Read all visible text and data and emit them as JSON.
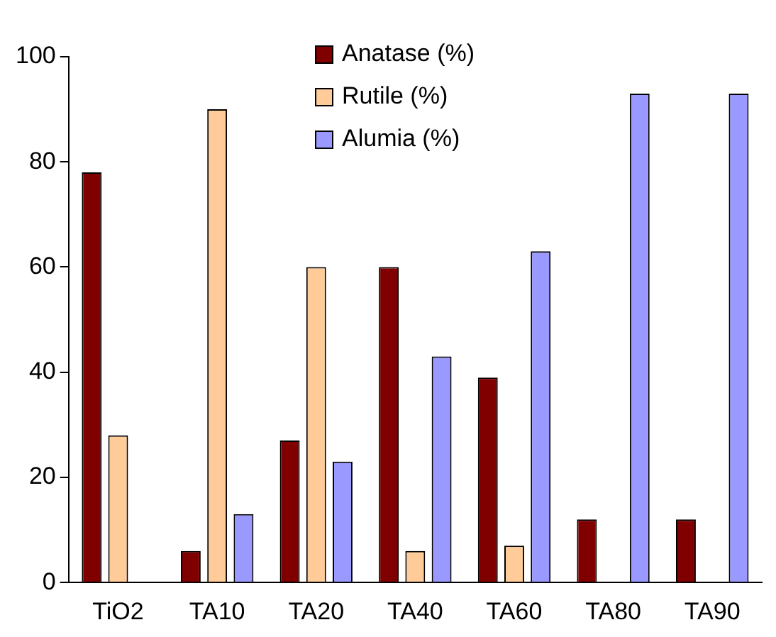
{
  "chart_data": {
    "type": "bar",
    "categories": [
      "TiO2",
      "TA10",
      "TA20",
      "TA40",
      "TA60",
      "TA80",
      "TA90"
    ],
    "series": [
      {
        "name": "Anatase (%)",
        "color": "#800000",
        "values": [
          78,
          6,
          27,
          60,
          39,
          12,
          12
        ]
      },
      {
        "name": "Rutile (%)",
        "color": "#ffcc99",
        "values": [
          28,
          90,
          60,
          6,
          7,
          0,
          0
        ]
      },
      {
        "name": "Alumia (%)",
        "color": "#9999ff",
        "values": [
          0,
          13,
          23,
          43,
          63,
          93,
          93
        ]
      }
    ],
    "ylim": [
      0,
      100
    ],
    "yticks": [
      0,
      20,
      40,
      60,
      80,
      100
    ],
    "grid": false,
    "legend": "top"
  }
}
